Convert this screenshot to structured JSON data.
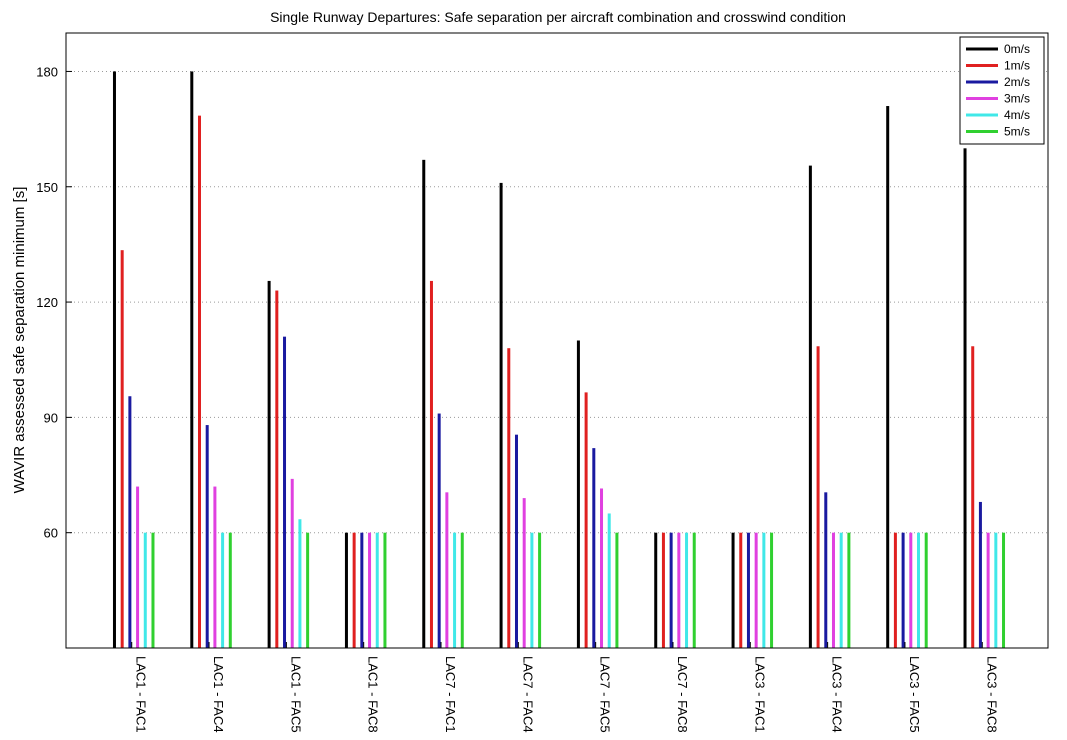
{
  "chart_data": {
    "type": "bar",
    "title": "Single Runway Departures: Safe separation per aircraft combination and crosswind condition",
    "xlabel": "",
    "ylabel": "WAVIR assessed safe separation minimum [s]",
    "ylim": [
      30,
      190
    ],
    "yticks": [
      60,
      90,
      120,
      150,
      180
    ],
    "grid": true,
    "legend_position": "top-right",
    "categories": [
      "LAC1 - FAC1",
      "LAC1 - FAC4",
      "LAC1 - FAC5",
      "LAC1 - FAC8",
      "LAC7 - FAC1",
      "LAC7 - FAC4",
      "LAC7 - FAC5",
      "LAC7 - FAC8",
      "LAC3 - FAC1",
      "LAC3 - FAC4",
      "LAC3 - FAC5",
      "LAC3 - FAC8"
    ],
    "series": [
      {
        "name": "0m/s",
        "color": "#000000",
        "values": [
          180,
          180,
          125.5,
          60,
          157,
          151,
          110,
          60,
          60,
          155.5,
          171,
          160
        ]
      },
      {
        "name": "1m/s",
        "color": "#e02020",
        "values": [
          133.5,
          168.5,
          123,
          60,
          125.5,
          108,
          96.5,
          60,
          60,
          108.5,
          60,
          108.5
        ]
      },
      {
        "name": "2m/s",
        "color": "#1a1aa0",
        "values": [
          95.5,
          88,
          111,
          60,
          91,
          85.5,
          82,
          60,
          60,
          70.5,
          60,
          68
        ]
      },
      {
        "name": "3m/s",
        "color": "#e040e0",
        "values": [
          72,
          72,
          74,
          60,
          70.5,
          69,
          71.5,
          60,
          60,
          60,
          60,
          60
        ]
      },
      {
        "name": "4m/s",
        "color": "#40e8e8",
        "values": [
          60,
          60,
          63.5,
          60,
          60,
          60,
          65,
          60,
          60,
          60,
          60,
          60
        ]
      },
      {
        "name": "5m/s",
        "color": "#30d030",
        "values": [
          60,
          60,
          60,
          60,
          60,
          60,
          60,
          60,
          60,
          60,
          60,
          60
        ]
      }
    ]
  }
}
